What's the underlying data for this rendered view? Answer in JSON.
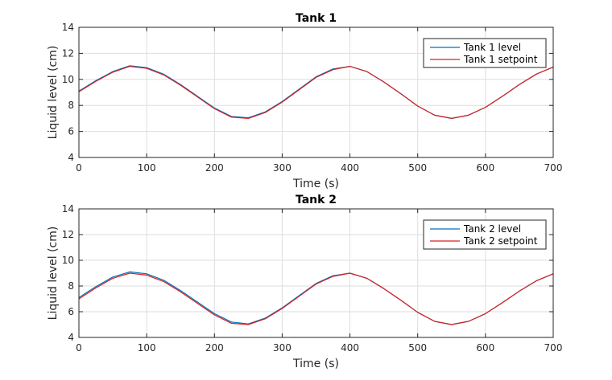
{
  "chart_data": [
    {
      "type": "line",
      "title": "Tank 1",
      "xlabel": "Time (s)",
      "ylabel": "Liquid level (cm)",
      "xlim": [
        0,
        700
      ],
      "ylim": [
        4,
        14
      ],
      "xticks": [
        0,
        100,
        200,
        300,
        400,
        500,
        600,
        700
      ],
      "yticks": [
        4,
        6,
        8,
        10,
        12,
        14
      ],
      "grid": true,
      "legend_position": "top-right",
      "series": [
        {
          "name": "Tank 1 level",
          "color": "#0072bd",
          "x": [
            0,
            25,
            50,
            75,
            100,
            125,
            150,
            175,
            200,
            225,
            250,
            275,
            300,
            325,
            350,
            375,
            400,
            425,
            450,
            475,
            500,
            525,
            550,
            575,
            600,
            625,
            650,
            675,
            700
          ],
          "y": [
            9.1,
            9.9,
            10.6,
            11.05,
            10.9,
            10.4,
            9.6,
            8.7,
            7.8,
            7.15,
            7.05,
            7.5,
            8.3,
            9.25,
            10.2,
            10.8,
            11.0,
            10.6,
            9.8,
            8.9,
            7.95,
            7.25,
            7.0,
            7.25,
            7.85,
            8.7,
            9.6,
            10.4,
            10.95
          ]
        },
        {
          "name": "Tank 1 setpoint",
          "color": "#d62020",
          "x": [
            0,
            25,
            50,
            75,
            100,
            125,
            150,
            175,
            200,
            225,
            250,
            275,
            300,
            325,
            350,
            375,
            400,
            425,
            450,
            475,
            500,
            525,
            550,
            575,
            600,
            625,
            650,
            675,
            700
          ],
          "y": [
            9.05,
            9.85,
            10.55,
            11.0,
            10.85,
            10.35,
            9.55,
            8.65,
            7.75,
            7.1,
            7.0,
            7.45,
            8.25,
            9.2,
            10.15,
            10.75,
            11.0,
            10.6,
            9.8,
            8.9,
            7.95,
            7.25,
            7.0,
            7.25,
            7.85,
            8.7,
            9.6,
            10.4,
            10.95
          ]
        }
      ]
    },
    {
      "type": "line",
      "title": "Tank 2",
      "xlabel": "Time (s)",
      "ylabel": "Liquid level (cm)",
      "xlim": [
        0,
        700
      ],
      "ylim": [
        4,
        14
      ],
      "xticks": [
        0,
        100,
        200,
        300,
        400,
        500,
        600,
        700
      ],
      "yticks": [
        4,
        6,
        8,
        10,
        12,
        14
      ],
      "grid": true,
      "legend_position": "top-right",
      "series": [
        {
          "name": "Tank 2 level",
          "color": "#0072bd",
          "x": [
            0,
            25,
            50,
            75,
            100,
            125,
            150,
            175,
            200,
            225,
            250,
            275,
            300,
            325,
            350,
            375,
            400,
            425,
            450,
            475,
            500,
            525,
            550,
            575,
            600,
            625,
            650,
            675,
            700
          ],
          "y": [
            7.1,
            7.95,
            8.7,
            9.1,
            8.95,
            8.45,
            7.65,
            6.75,
            5.85,
            5.2,
            5.05,
            5.5,
            6.3,
            7.25,
            8.2,
            8.8,
            9.0,
            8.6,
            7.8,
            6.9,
            5.95,
            5.25,
            5.0,
            5.25,
            5.85,
            6.7,
            7.6,
            8.4,
            8.95
          ]
        },
        {
          "name": "Tank 2 setpoint",
          "color": "#d62020",
          "x": [
            0,
            25,
            50,
            75,
            100,
            125,
            150,
            175,
            200,
            225,
            250,
            275,
            300,
            325,
            350,
            375,
            400,
            425,
            450,
            475,
            500,
            525,
            550,
            575,
            600,
            625,
            650,
            675,
            700
          ],
          "y": [
            7.0,
            7.85,
            8.6,
            9.0,
            8.85,
            8.35,
            7.55,
            6.65,
            5.75,
            5.1,
            5.0,
            5.45,
            6.25,
            7.2,
            8.15,
            8.75,
            9.0,
            8.6,
            7.8,
            6.9,
            5.95,
            5.25,
            5.0,
            5.25,
            5.85,
            6.7,
            7.6,
            8.4,
            8.95
          ]
        }
      ]
    }
  ]
}
